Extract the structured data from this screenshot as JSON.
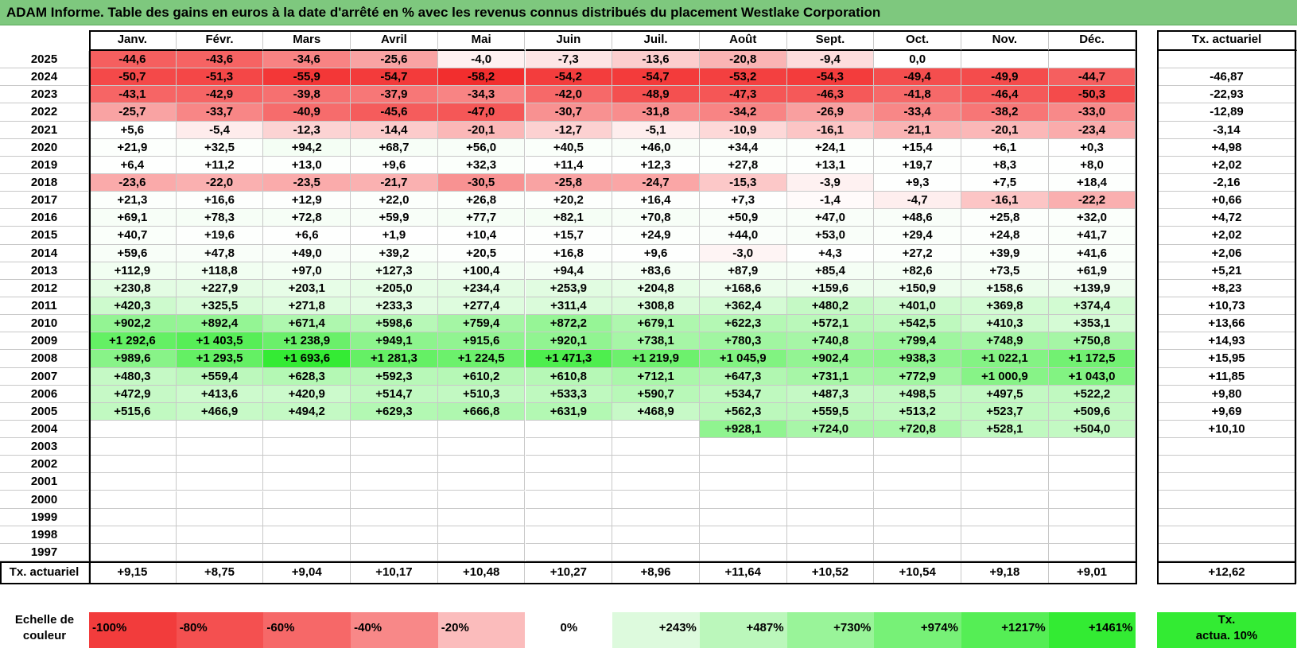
{
  "title": "ADAM Informe. Table des gains en euros à la date d'arrêté en % avec les revenus connus distribués du placement Westlake Corporation",
  "months": [
    "Janv.",
    "Févr.",
    "Mars",
    "Avril",
    "Mai",
    "Juin",
    "Juil.",
    "Août",
    "Sept.",
    "Oct.",
    "Nov.",
    "Déc."
  ],
  "rate_header": "Tx. actuariel",
  "footer_label": "Tx. actuariel",
  "rows": [
    {
      "year": "2025",
      "values": [
        "-44,6",
        "-43,6",
        "-34,6",
        "-25,6",
        "-4,0",
        "-7,3",
        "-13,6",
        "-20,8",
        "-9,4",
        "0,0",
        "",
        ""
      ],
      "rate": ""
    },
    {
      "year": "2024",
      "values": [
        "-50,7",
        "-51,3",
        "-55,9",
        "-54,7",
        "-58,2",
        "-54,2",
        "-54,7",
        "-53,2",
        "-54,3",
        "-49,4",
        "-49,9",
        "-44,7"
      ],
      "rate": "-46,87"
    },
    {
      "year": "2023",
      "values": [
        "-43,1",
        "-42,9",
        "-39,8",
        "-37,9",
        "-34,3",
        "-42,0",
        "-48,9",
        "-47,3",
        "-46,3",
        "-41,8",
        "-46,4",
        "-50,3"
      ],
      "rate": "-22,93"
    },
    {
      "year": "2022",
      "values": [
        "-25,7",
        "-33,7",
        "-40,9",
        "-45,6",
        "-47,0",
        "-30,7",
        "-31,8",
        "-34,2",
        "-26,9",
        "-33,4",
        "-38,2",
        "-33,0"
      ],
      "rate": "-12,89"
    },
    {
      "year": "2021",
      "values": [
        "+5,6",
        "-5,4",
        "-12,3",
        "-14,4",
        "-20,1",
        "-12,7",
        "-5,1",
        "-10,9",
        "-16,1",
        "-21,1",
        "-20,1",
        "-23,4"
      ],
      "rate": "-3,14"
    },
    {
      "year": "2020",
      "values": [
        "+21,9",
        "+32,5",
        "+94,2",
        "+68,7",
        "+56,0",
        "+40,5",
        "+46,0",
        "+34,4",
        "+24,1",
        "+15,4",
        "+6,1",
        "+0,3"
      ],
      "rate": "+4,98"
    },
    {
      "year": "2019",
      "values": [
        "+6,4",
        "+11,2",
        "+13,0",
        "+9,6",
        "+32,3",
        "+11,4",
        "+12,3",
        "+27,8",
        "+13,1",
        "+19,7",
        "+8,3",
        "+8,0"
      ],
      "rate": "+2,02"
    },
    {
      "year": "2018",
      "values": [
        "-23,6",
        "-22,0",
        "-23,5",
        "-21,7",
        "-30,5",
        "-25,8",
        "-24,7",
        "-15,3",
        "-3,9",
        "+9,3",
        "+7,5",
        "+18,4"
      ],
      "rate": "-2,16"
    },
    {
      "year": "2017",
      "values": [
        "+21,3",
        "+16,6",
        "+12,9",
        "+22,0",
        "+26,8",
        "+20,2",
        "+16,4",
        "+7,3",
        "-1,4",
        "-4,7",
        "-16,1",
        "-22,2"
      ],
      "rate": "+0,66"
    },
    {
      "year": "2016",
      "values": [
        "+69,1",
        "+78,3",
        "+72,8",
        "+59,9",
        "+77,7",
        "+82,1",
        "+70,8",
        "+50,9",
        "+47,0",
        "+48,6",
        "+25,8",
        "+32,0"
      ],
      "rate": "+4,72"
    },
    {
      "year": "2015",
      "values": [
        "+40,7",
        "+19,6",
        "+6,6",
        "+1,9",
        "+10,4",
        "+15,7",
        "+24,9",
        "+44,0",
        "+53,0",
        "+29,4",
        "+24,8",
        "+41,7"
      ],
      "rate": "+2,02"
    },
    {
      "year": "2014",
      "values": [
        "+59,6",
        "+47,8",
        "+49,0",
        "+39,2",
        "+20,5",
        "+16,8",
        "+9,6",
        "-3,0",
        "+4,3",
        "+27,2",
        "+39,9",
        "+41,6"
      ],
      "rate": "+2,06"
    },
    {
      "year": "2013",
      "values": [
        "+112,9",
        "+118,8",
        "+97,0",
        "+127,3",
        "+100,4",
        "+94,4",
        "+83,6",
        "+87,9",
        "+85,4",
        "+82,6",
        "+73,5",
        "+61,9"
      ],
      "rate": "+5,21"
    },
    {
      "year": "2012",
      "values": [
        "+230,8",
        "+227,9",
        "+203,1",
        "+205,0",
        "+234,4",
        "+253,9",
        "+204,8",
        "+168,6",
        "+159,6",
        "+150,9",
        "+158,6",
        "+139,9"
      ],
      "rate": "+8,23"
    },
    {
      "year": "2011",
      "values": [
        "+420,3",
        "+325,5",
        "+271,8",
        "+233,3",
        "+277,4",
        "+311,4",
        "+308,8",
        "+362,4",
        "+480,2",
        "+401,0",
        "+369,8",
        "+374,4"
      ],
      "rate": "+10,73"
    },
    {
      "year": "2010",
      "values": [
        "+902,2",
        "+892,4",
        "+671,4",
        "+598,6",
        "+759,4",
        "+872,2",
        "+679,1",
        "+622,3",
        "+572,1",
        "+542,5",
        "+410,3",
        "+353,1"
      ],
      "rate": "+13,66"
    },
    {
      "year": "2009",
      "values": [
        "+1 292,6",
        "+1 403,5",
        "+1 238,9",
        "+949,1",
        "+915,6",
        "+920,1",
        "+738,1",
        "+780,3",
        "+740,8",
        "+799,4",
        "+748,9",
        "+750,8"
      ],
      "rate": "+14,93"
    },
    {
      "year": "2008",
      "values": [
        "+989,6",
        "+1 293,5",
        "+1 693,6",
        "+1 281,3",
        "+1 224,5",
        "+1 471,3",
        "+1 219,9",
        "+1 045,9",
        "+902,4",
        "+938,3",
        "+1 022,1",
        "+1 172,5"
      ],
      "rate": "+15,95"
    },
    {
      "year": "2007",
      "values": [
        "+480,3",
        "+559,4",
        "+628,3",
        "+592,3",
        "+610,2",
        "+610,8",
        "+712,1",
        "+647,3",
        "+731,1",
        "+772,9",
        "+1 000,9",
        "+1 043,0"
      ],
      "rate": "+11,85"
    },
    {
      "year": "2006",
      "values": [
        "+472,9",
        "+413,6",
        "+420,9",
        "+514,7",
        "+510,3",
        "+533,3",
        "+590,7",
        "+534,7",
        "+487,3",
        "+498,5",
        "+497,5",
        "+522,2"
      ],
      "rate": "+9,80"
    },
    {
      "year": "2005",
      "values": [
        "+515,6",
        "+466,9",
        "+494,2",
        "+629,3",
        "+666,8",
        "+631,9",
        "+468,9",
        "+562,3",
        "+559,5",
        "+513,2",
        "+523,7",
        "+509,6"
      ],
      "rate": "+9,69"
    },
    {
      "year": "2004",
      "values": [
        "",
        "",
        "",
        "",
        "",
        "",
        "",
        "+928,1",
        "+724,0",
        "+720,8",
        "+528,1",
        "+504,0"
      ],
      "rate": "+10,10"
    },
    {
      "year": "2003",
      "values": [
        "",
        "",
        "",
        "",
        "",
        "",
        "",
        "",
        "",
        "",
        "",
        ""
      ],
      "rate": ""
    },
    {
      "year": "2002",
      "values": [
        "",
        "",
        "",
        "",
        "",
        "",
        "",
        "",
        "",
        "",
        "",
        ""
      ],
      "rate": ""
    },
    {
      "year": "2001",
      "values": [
        "",
        "",
        "",
        "",
        "",
        "",
        "",
        "",
        "",
        "",
        "",
        ""
      ],
      "rate": ""
    },
    {
      "year": "2000",
      "values": [
        "",
        "",
        "",
        "",
        "",
        "",
        "",
        "",
        "",
        "",
        "",
        ""
      ],
      "rate": ""
    },
    {
      "year": "1999",
      "values": [
        "",
        "",
        "",
        "",
        "",
        "",
        "",
        "",
        "",
        "",
        "",
        ""
      ],
      "rate": ""
    },
    {
      "year": "1998",
      "values": [
        "",
        "",
        "",
        "",
        "",
        "",
        "",
        "",
        "",
        "",
        "",
        ""
      ],
      "rate": ""
    },
    {
      "year": "1997",
      "values": [
        "",
        "",
        "",
        "",
        "",
        "",
        "",
        "",
        "",
        "",
        "",
        ""
      ],
      "rate": ""
    }
  ],
  "footer_values": [
    "+9,15",
    "+8,75",
    "+9,04",
    "+10,17",
    "+10,48",
    "+10,27",
    "+8,96",
    "+11,64",
    "+10,52",
    "+10,54",
    "+9,18",
    "+9,01"
  ],
  "footer_rate": "+12,62",
  "scale": {
    "label_line1": "Echelle de",
    "label_line2": "couleur",
    "items": [
      "-100%",
      "-80%",
      "-60%",
      "-40%",
      "-20%",
      "0%",
      "+243%",
      "+487%",
      "+730%",
      "+974%",
      "+1217%",
      "+1461%"
    ],
    "item_colors": [
      "#f23c3c",
      "#f45050",
      "#f66868",
      "#f88888",
      "#fbbcbc",
      "#ffffff",
      "#ddfadd",
      "#bbf7bb",
      "#99f499",
      "#77f177",
      "#55ee55",
      "#33eb33"
    ],
    "rate_label_line1": "Tx.",
    "rate_label_line2": "actua. 10%",
    "rate_color": "#33eb33"
  },
  "chart_data": {
    "type": "heatmap",
    "title": "ADAM Informe. Table des gains en euros à la date d'arrêté en % avec les revenus connus distribués du placement Westlake Corporation",
    "x": [
      "Janv.",
      "Févr.",
      "Mars",
      "Avril",
      "Mai",
      "Juin",
      "Juil.",
      "Août",
      "Sept.",
      "Oct.",
      "Nov.",
      "Déc."
    ],
    "y": [
      "2025",
      "2024",
      "2023",
      "2022",
      "2021",
      "2020",
      "2019",
      "2018",
      "2017",
      "2016",
      "2015",
      "2014",
      "2013",
      "2012",
      "2011",
      "2010",
      "2009",
      "2008",
      "2007",
      "2006",
      "2005",
      "2004",
      "2003",
      "2002",
      "2001",
      "2000",
      "1999",
      "1998",
      "1997"
    ],
    "color_scale": {
      "min": -100,
      "max": 1461,
      "negative_color": "#f23c3c",
      "zero_color": "#ffffff",
      "positive_color": "#33eb33"
    }
  }
}
